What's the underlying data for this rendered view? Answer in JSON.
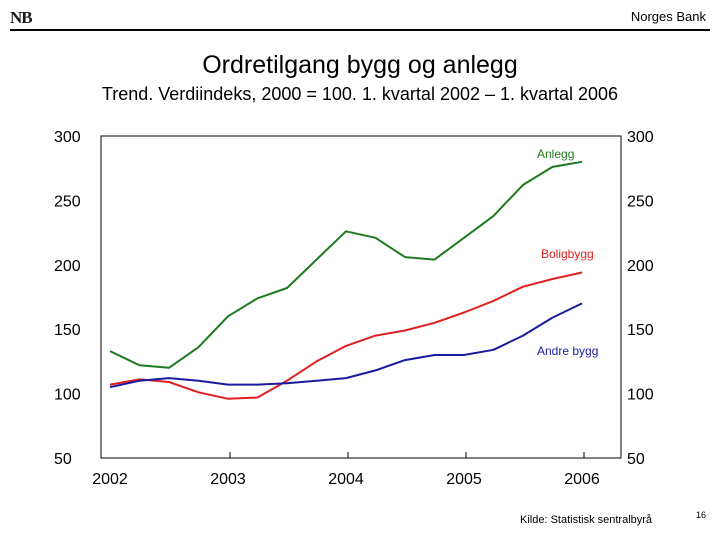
{
  "header": {
    "logo_text": "NB",
    "bank_name": "Norges Bank"
  },
  "footer": {
    "source": "Kilde: Statistisk sentralbyrå",
    "page_number": "16"
  },
  "chart_data": {
    "type": "line",
    "title": "Ordretilgang bygg og anlegg",
    "subtitle": "Trend. Verdiindeks, 2000 = 100. 1. kvartal 2002 – 1. kvartal 2006",
    "xlabel": "",
    "ylabel": "",
    "x": [
      "2002K1",
      "2002K2",
      "2002K3",
      "2002K4",
      "2003K1",
      "2003K2",
      "2003K3",
      "2003K4",
      "2004K1",
      "2004K2",
      "2004K3",
      "2004K4",
      "2005K1",
      "2005K2",
      "2005K3",
      "2005K4",
      "2006K1"
    ],
    "x_ticks": [
      "2002",
      "2003",
      "2004",
      "2005",
      "2006"
    ],
    "y_ticks": [
      "50",
      "100",
      "150",
      "200",
      "250",
      "300"
    ],
    "ylim": [
      50,
      300
    ],
    "grid": false,
    "series": [
      {
        "name": "Anlegg",
        "color": "#1e7a1e",
        "values": [
          133,
          122,
          120,
          136,
          160,
          174,
          182,
          204,
          226,
          221,
          206,
          204,
          221,
          238,
          262,
          276,
          280
        ]
      },
      {
        "name": "Boligbygg",
        "color": "#e02020",
        "values": [
          107,
          111,
          109,
          101,
          96,
          97,
          110,
          125,
          137,
          145,
          149,
          155,
          163,
          172,
          183,
          189,
          194
        ]
      },
      {
        "name": "Andre bygg",
        "color": "#1a1aa0",
        "values": [
          105,
          110,
          112,
          110,
          107,
          107,
          108,
          110,
          112,
          118,
          126,
          130,
          130,
          134,
          145,
          159,
          170
        ]
      }
    ]
  }
}
